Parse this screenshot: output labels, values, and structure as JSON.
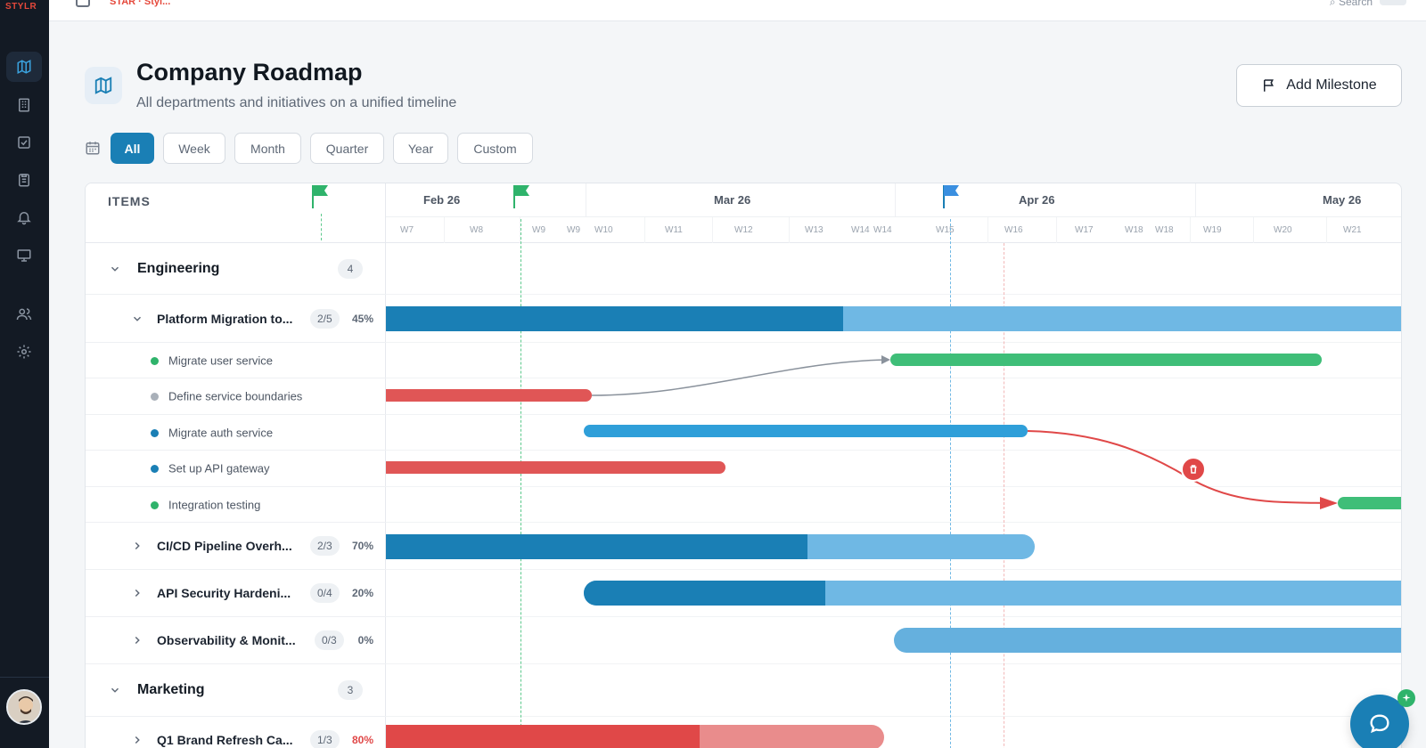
{
  "app": {
    "logo": "STYLR",
    "breadcrumb": "STAR · Styl...",
    "search_label": "Search"
  },
  "sidebar": {
    "items": [
      {
        "icon": "map-icon",
        "active": true
      },
      {
        "icon": "building-icon",
        "active": false
      },
      {
        "icon": "checkbox-icon",
        "active": false
      },
      {
        "icon": "clipboard-icon",
        "active": false
      },
      {
        "icon": "bell-icon",
        "active": false
      },
      {
        "icon": "presentation-icon",
        "active": false
      },
      {
        "icon": "users-icon",
        "active": false
      },
      {
        "icon": "gear-icon",
        "active": false
      }
    ]
  },
  "header": {
    "title": "Company Roadmap",
    "subtitle": "All departments and initiatives on a unified timeline",
    "add_milestone": "Add Milestone"
  },
  "filters": [
    {
      "label": "All",
      "active": true
    },
    {
      "label": "Week",
      "active": false
    },
    {
      "label": "Month",
      "active": false
    },
    {
      "label": "Quarter",
      "active": false
    },
    {
      "label": "Year",
      "active": false
    },
    {
      "label": "Custom",
      "active": false
    }
  ],
  "gantt": {
    "items_header": "ITEMS",
    "months": [
      "Feb 26",
      "Mar 26",
      "Apr 26",
      "May 26"
    ],
    "weeks": [
      "W7",
      "W8",
      "W9",
      "W9",
      "W10",
      "W11",
      "W12",
      "W13",
      "W14",
      "W14",
      "W15",
      "W16",
      "W17",
      "W18",
      "W18",
      "W19",
      "W20",
      "W21"
    ],
    "groups": [
      {
        "name": "Engineering",
        "count": "4",
        "projects": [
          {
            "name": "Platform Migration to...",
            "progress": "2/5",
            "percent": "45%",
            "tasks": [
              {
                "name": "Migrate user service",
                "status_color": "#2fb36b"
              },
              {
                "name": "Define service boundaries",
                "status_color": "#a9b0b9"
              },
              {
                "name": "Migrate auth service",
                "status_color": "#1a7fb5"
              },
              {
                "name": "Set up API gateway",
                "status_color": "#1a7fb5"
              },
              {
                "name": "Integration testing",
                "status_color": "#2fb36b"
              }
            ]
          },
          {
            "name": "CI/CD Pipeline Overh...",
            "progress": "2/3",
            "percent": "70%"
          },
          {
            "name": "API Security Hardeni...",
            "progress": "0/4",
            "percent": "20%"
          },
          {
            "name": "Observability & Monit...",
            "progress": "0/3",
            "percent": "0%"
          }
        ]
      },
      {
        "name": "Marketing",
        "count": "3",
        "projects": [
          {
            "name": "Q1 Brand Refresh Ca...",
            "progress": "1/3",
            "percent": "80%"
          }
        ]
      }
    ]
  },
  "colors": {
    "primary": "#1a7fb5",
    "primary_light": "#6fb8e4",
    "success": "#2fb36b",
    "danger": "#e04848",
    "danger_light": "#e98c8c"
  }
}
